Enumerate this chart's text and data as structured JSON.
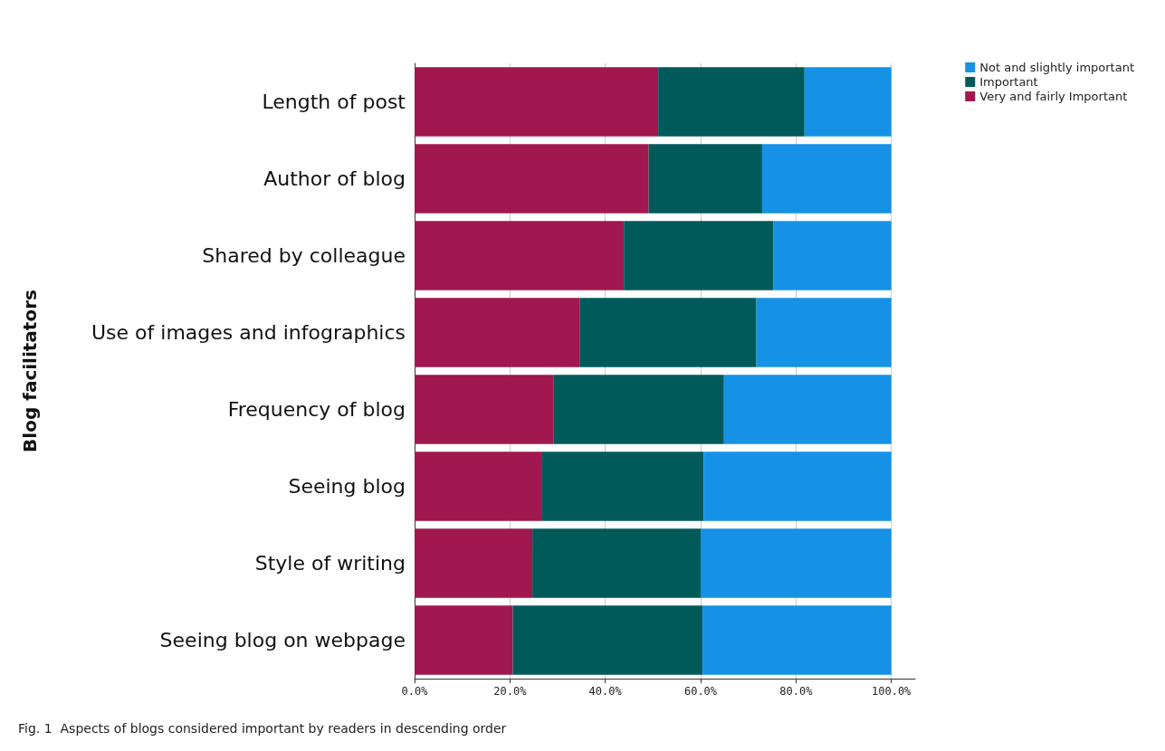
{
  "chart_data": {
    "type": "bar",
    "orientation": "horizontal",
    "stacked": true,
    "ylabel": "Blog facilitators",
    "categories": [
      "Length of post",
      "Author of blog",
      "Shared by colleague",
      "Use of images and infographics",
      "Frequency of blog",
      "Seeing blog",
      "Style of writing",
      "Seeing blog on webpage"
    ],
    "series": [
      {
        "name": "Very and fairly Important",
        "color": "#a0184e",
        "values": [
          51.1,
          49.1,
          43.9,
          34.6,
          29.2,
          26.6,
          24.7,
          20.6
        ]
      },
      {
        "name": "Important",
        "color": "#005a5a",
        "values": [
          30.7,
          23.8,
          31.4,
          37.1,
          35.7,
          34.0,
          35.3,
          39.8
        ]
      },
      {
        "name": "Not and slightly important",
        "color": "#1592e6",
        "values": [
          18.2,
          27.1,
          24.7,
          28.3,
          35.1,
          39.4,
          40.0,
          39.6
        ]
      }
    ],
    "xlim": [
      0,
      105
    ],
    "xticks": [
      {
        "value": 0,
        "label": "0.0%"
      },
      {
        "value": 20,
        "label": "20.0%"
      },
      {
        "value": 40,
        "label": "40.0%"
      },
      {
        "value": 60,
        "label": "60.0%"
      },
      {
        "value": 80,
        "label": "80.0%"
      },
      {
        "value": 100,
        "label": "100.0%"
      }
    ],
    "grid": "x",
    "legend": "top right",
    "annotations": [
      "Fig. 1  Aspects of blogs considered important by readers in descending order"
    ]
  }
}
